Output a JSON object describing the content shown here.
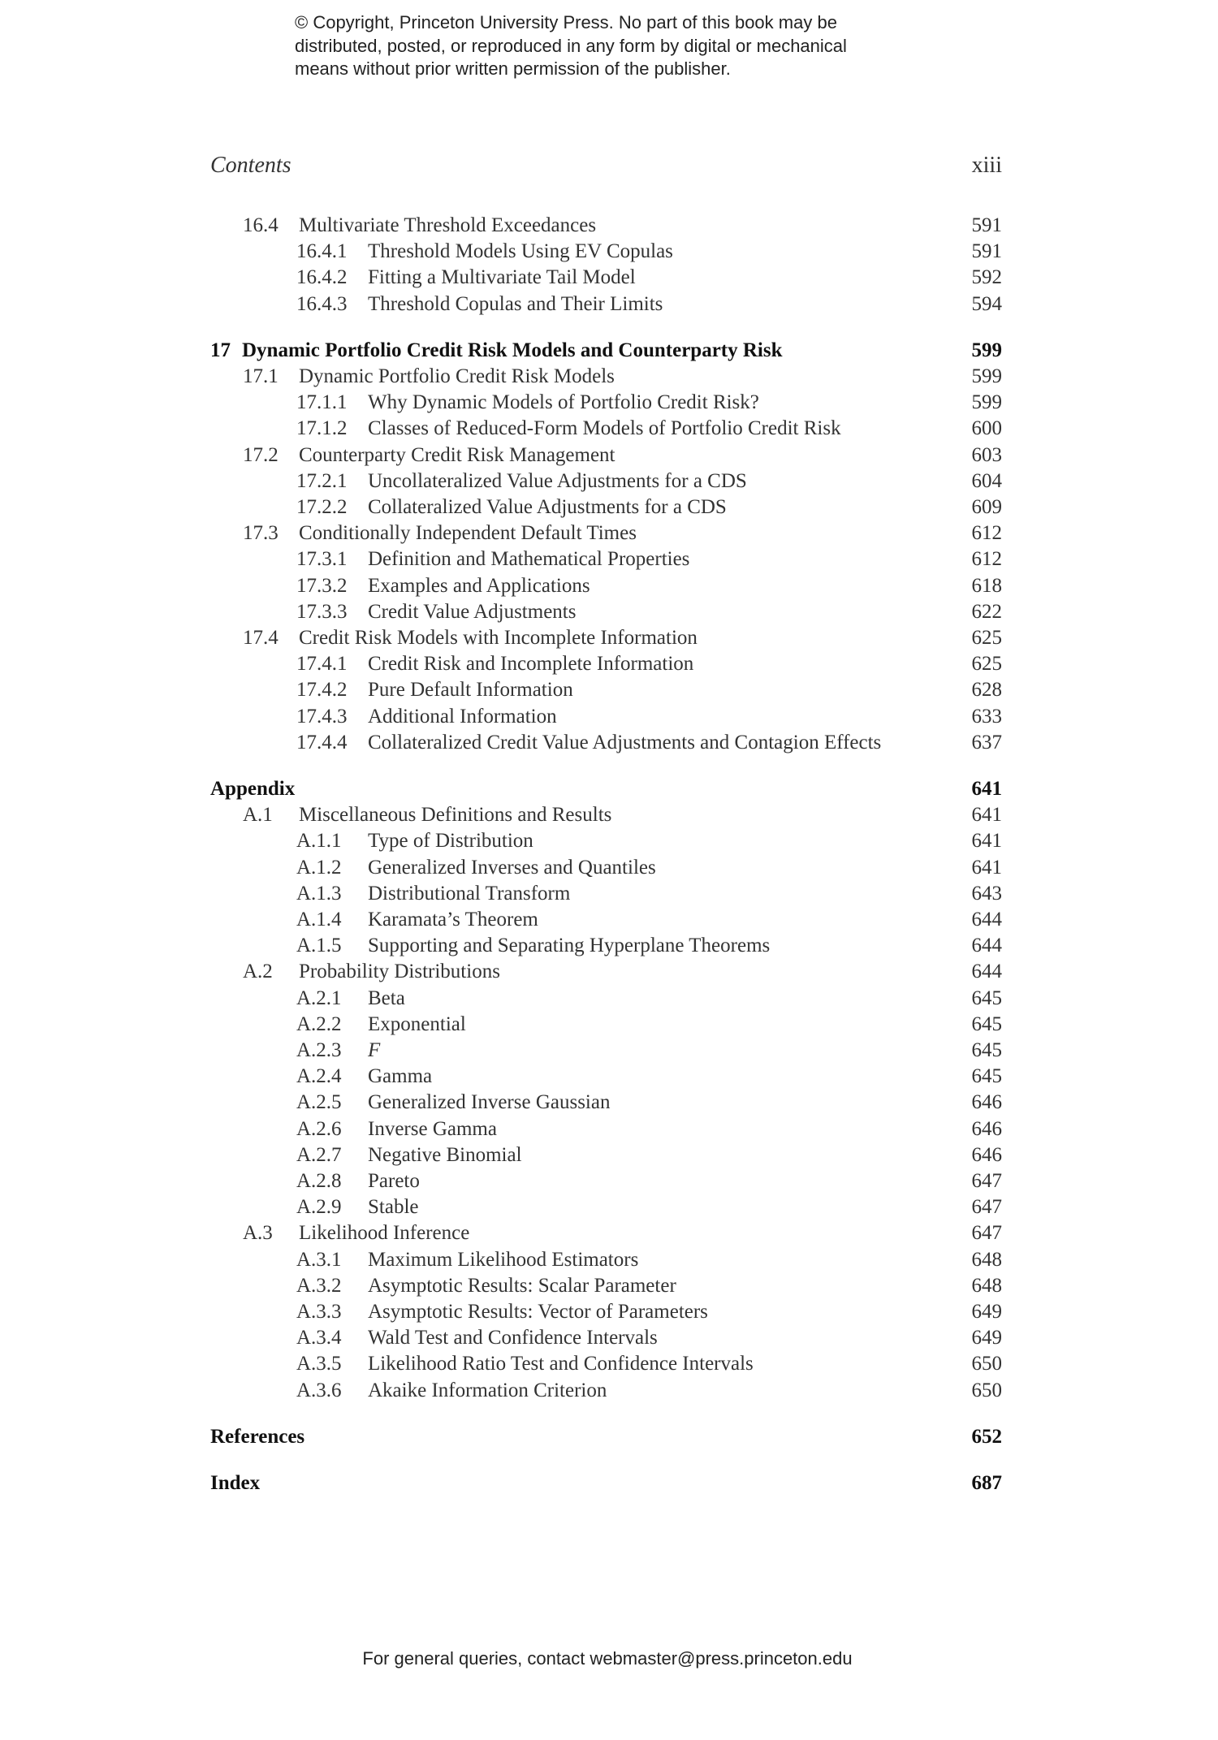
{
  "copyright": {
    "lines": [
      "© Copyright, Princeton University Press. No part of this book may be",
      "distributed, posted, or reproduced in any form by digital or mechanical",
      "means without prior written permission of the publisher."
    ]
  },
  "header": {
    "title": "Contents",
    "page": "xiii"
  },
  "toc": [
    {
      "level": "section",
      "num": "16.4",
      "title": "Multivariate Threshold Exceedances",
      "page": "591"
    },
    {
      "level": "subsection",
      "num": "16.4.1",
      "title": "Threshold Models Using EV Copulas",
      "page": "591"
    },
    {
      "level": "subsection",
      "num": "16.4.2",
      "title": "Fitting a Multivariate Tail Model",
      "page": "592"
    },
    {
      "level": "subsection",
      "num": "16.4.3",
      "title": "Threshold Copulas and Their Limits",
      "page": "594"
    },
    {
      "level": "chapter",
      "num": "17",
      "title": "Dynamic Portfolio Credit Risk Models and Counterparty Risk",
      "page": "599"
    },
    {
      "level": "section",
      "num": "17.1",
      "title": "Dynamic Portfolio Credit Risk Models",
      "page": "599"
    },
    {
      "level": "subsection",
      "num": "17.1.1",
      "title": "Why Dynamic Models of Portfolio Credit Risk?",
      "page": "599"
    },
    {
      "level": "subsection",
      "num": "17.1.2",
      "title": "Classes of Reduced-Form Models of Portfolio Credit Risk",
      "page": "600"
    },
    {
      "level": "section",
      "num": "17.2",
      "title": "Counterparty Credit Risk Management",
      "page": "603"
    },
    {
      "level": "subsection",
      "num": "17.2.1",
      "title": "Uncollateralized Value Adjustments for a CDS",
      "page": "604"
    },
    {
      "level": "subsection",
      "num": "17.2.2",
      "title": "Collateralized Value Adjustments for a CDS",
      "page": "609"
    },
    {
      "level": "section",
      "num": "17.3",
      "title": "Conditionally Independent Default Times",
      "page": "612"
    },
    {
      "level": "subsection",
      "num": "17.3.1",
      "title": "Definition and Mathematical Properties",
      "page": "612"
    },
    {
      "level": "subsection",
      "num": "17.3.2",
      "title": "Examples and Applications",
      "page": "618"
    },
    {
      "level": "subsection",
      "num": "17.3.3",
      "title": "Credit Value Adjustments",
      "page": "622"
    },
    {
      "level": "section",
      "num": "17.4",
      "title": "Credit Risk Models with Incomplete Information",
      "page": "625"
    },
    {
      "level": "subsection",
      "num": "17.4.1",
      "title": "Credit Risk and Incomplete Information",
      "page": "625"
    },
    {
      "level": "subsection",
      "num": "17.4.2",
      "title": "Pure Default Information",
      "page": "628"
    },
    {
      "level": "subsection",
      "num": "17.4.3",
      "title": "Additional Information",
      "page": "633"
    },
    {
      "level": "subsection",
      "num": "17.4.4",
      "title": "Collateralized Credit Value Adjustments and Contagion Effects",
      "page": "637"
    },
    {
      "level": "chapter",
      "num": "",
      "title": "Appendix",
      "page": "641"
    },
    {
      "level": "section",
      "num": "A.1",
      "title": "Miscellaneous Definitions and Results",
      "page": "641"
    },
    {
      "level": "subsection",
      "num": "A.1.1",
      "title": "Type of Distribution",
      "page": "641"
    },
    {
      "level": "subsection",
      "num": "A.1.2",
      "title": "Generalized Inverses and Quantiles",
      "page": "641"
    },
    {
      "level": "subsection",
      "num": "A.1.3",
      "title": "Distributional Transform",
      "page": "643"
    },
    {
      "level": "subsection",
      "num": "A.1.4",
      "title": "Karamata’s Theorem",
      "page": "644"
    },
    {
      "level": "subsection",
      "num": "A.1.5",
      "title": "Supporting and Separating Hyperplane Theorems",
      "page": "644"
    },
    {
      "level": "section",
      "num": "A.2",
      "title": "Probability Distributions",
      "page": "644"
    },
    {
      "level": "subsection",
      "num": "A.2.1",
      "title": "Beta",
      "page": "645"
    },
    {
      "level": "subsection",
      "num": "A.2.2",
      "title": "Exponential",
      "page": "645"
    },
    {
      "level": "subsection",
      "num": "A.2.3",
      "title": "F",
      "page": "645",
      "italic": true
    },
    {
      "level": "subsection",
      "num": "A.2.4",
      "title": "Gamma",
      "page": "645"
    },
    {
      "level": "subsection",
      "num": "A.2.5",
      "title": "Generalized Inverse Gaussian",
      "page": "646"
    },
    {
      "level": "subsection",
      "num": "A.2.6",
      "title": "Inverse Gamma",
      "page": "646"
    },
    {
      "level": "subsection",
      "num": "A.2.7",
      "title": "Negative Binomial",
      "page": "646"
    },
    {
      "level": "subsection",
      "num": "A.2.8",
      "title": "Pareto",
      "page": "647"
    },
    {
      "level": "subsection",
      "num": "A.2.9",
      "title": "Stable",
      "page": "647"
    },
    {
      "level": "section",
      "num": "A.3",
      "title": "Likelihood Inference",
      "page": "647"
    },
    {
      "level": "subsection",
      "num": "A.3.1",
      "title": "Maximum Likelihood Estimators",
      "page": "648"
    },
    {
      "level": "subsection",
      "num": "A.3.2",
      "title": "Asymptotic Results: Scalar Parameter",
      "page": "648"
    },
    {
      "level": "subsection",
      "num": "A.3.3",
      "title": "Asymptotic Results: Vector of Parameters",
      "page": "649"
    },
    {
      "level": "subsection",
      "num": "A.3.4",
      "title": "Wald Test and Confidence Intervals",
      "page": "649"
    },
    {
      "level": "subsection",
      "num": "A.3.5",
      "title": "Likelihood Ratio Test and Confidence Intervals",
      "page": "650"
    },
    {
      "level": "subsection",
      "num": "A.3.6",
      "title": "Akaike Information Criterion",
      "page": "650"
    },
    {
      "level": "chapter",
      "num": "",
      "title": "References",
      "page": "652"
    },
    {
      "level": "chapter",
      "num": "",
      "title": "Index",
      "page": "687"
    }
  ],
  "footer": {
    "text": "For general queries, contact webmaster@press.princeton.edu"
  }
}
